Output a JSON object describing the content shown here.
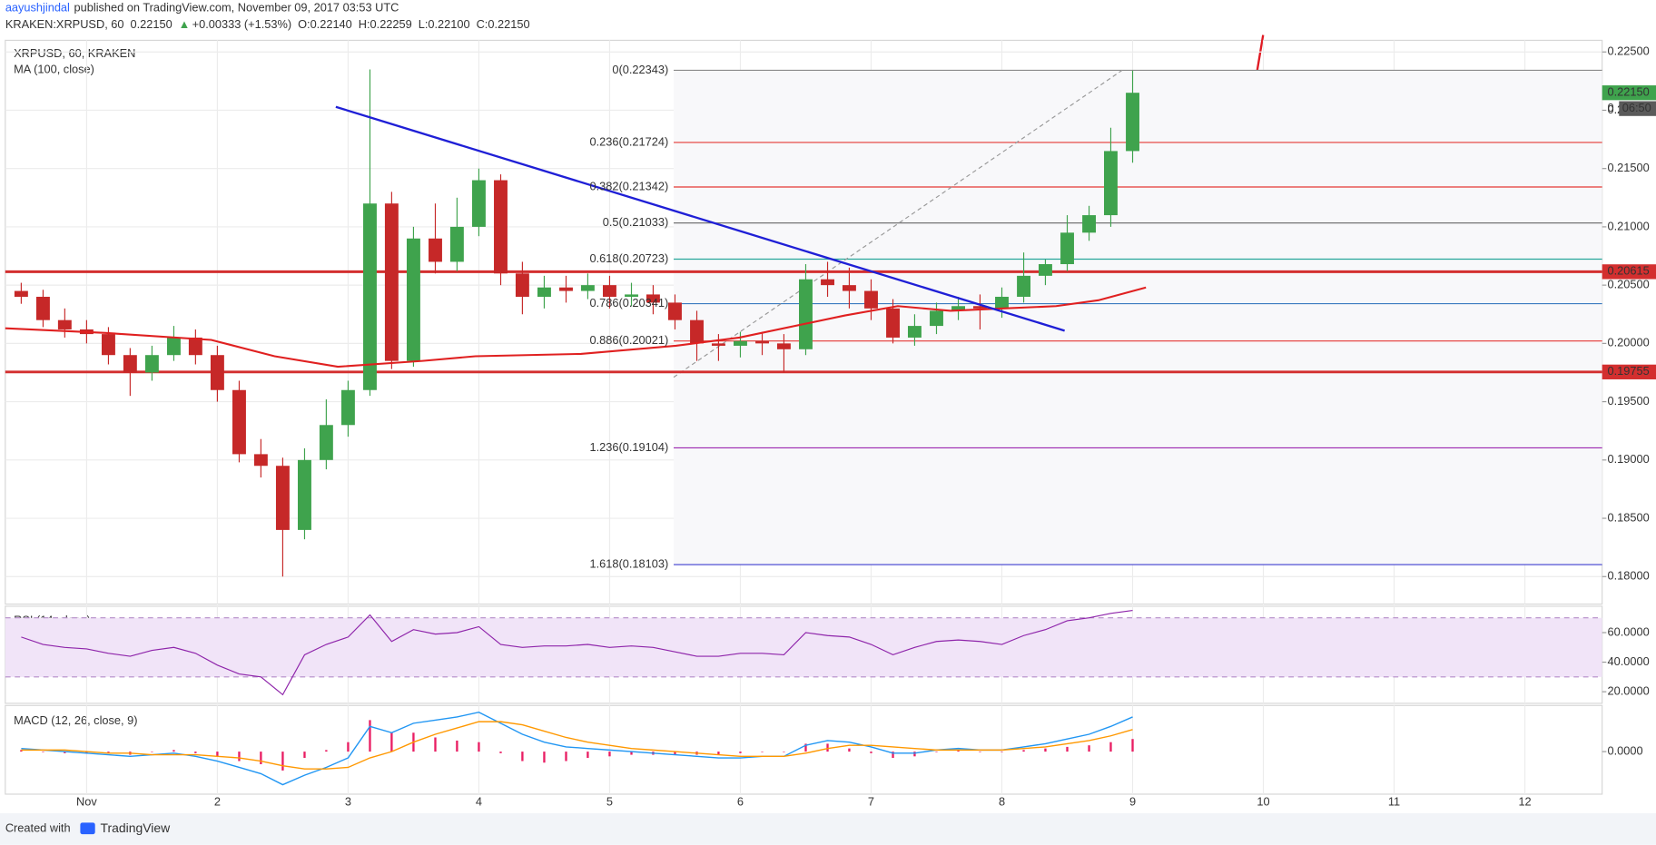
{
  "header": {
    "author": "aayushjindal",
    "published": "published on TradingView.com, November 09, 2017 03:53 UTC",
    "symbol": "KRAKEN:XRPUSD, 60",
    "last": "0.22150",
    "change": "+0.00333 (+1.53%)",
    "open": "O:0.22140",
    "high": "H:0.22259",
    "low": "L:0.22100",
    "close": "C:0.22150"
  },
  "footer": {
    "created": "Created with",
    "brand": "TradingView"
  },
  "chart_data": [
    {
      "type": "candlestick",
      "title": "XRPUSD, 60, KRAKEN",
      "up_color": "#3fa34d",
      "down_color": "#c62828",
      "x": [
        0.5,
        0.667,
        0.833,
        1,
        1.167,
        1.333,
        1.5,
        1.667,
        1.833,
        2,
        2.167,
        2.333,
        2.5,
        2.667,
        2.833,
        3,
        3.167,
        3.333,
        3.5,
        3.667,
        3.833,
        4,
        4.167,
        4.333,
        4.5,
        4.667,
        4.833,
        5,
        5.167,
        5.333,
        5.5,
        5.667,
        5.833,
        6,
        6.167,
        6.333,
        6.5,
        6.667,
        6.833,
        7,
        7.167,
        7.333,
        7.5,
        7.667,
        7.833,
        8,
        8.167,
        8.333,
        8.5,
        8.667,
        8.833,
        9
      ],
      "open": [
        0.2045,
        0.204,
        0.202,
        0.2012,
        0.2008,
        0.199,
        0.1975,
        0.199,
        0.2005,
        0.199,
        0.196,
        0.1905,
        0.1895,
        0.184,
        0.19,
        0.193,
        0.196,
        0.212,
        0.1985,
        0.209,
        0.207,
        0.21,
        0.214,
        0.206,
        0.204,
        0.2048,
        0.2045,
        0.205,
        0.204,
        0.2042,
        0.2035,
        0.202,
        0.2,
        0.1998,
        0.2002,
        0.2,
        0.1995,
        0.2055,
        0.205,
        0.2045,
        0.203,
        0.2005,
        0.2015,
        0.2028,
        0.2032,
        0.203,
        0.204,
        0.2058,
        0.2068,
        0.2095,
        0.211,
        0.2165
      ],
      "high": [
        0.2052,
        0.2046,
        0.203,
        0.202,
        0.2014,
        0.1996,
        0.1998,
        0.2015,
        0.2012,
        0.1998,
        0.1968,
        0.1918,
        0.1902,
        0.191,
        0.1952,
        0.1968,
        0.2235,
        0.213,
        0.21,
        0.212,
        0.2125,
        0.215,
        0.2145,
        0.207,
        0.2058,
        0.2058,
        0.206,
        0.2058,
        0.2052,
        0.205,
        0.2042,
        0.2028,
        0.2008,
        0.201,
        0.201,
        0.2008,
        0.2068,
        0.207,
        0.2065,
        0.2055,
        0.2038,
        0.2025,
        0.2035,
        0.204,
        0.2042,
        0.2048,
        0.2078,
        0.2072,
        0.211,
        0.2118,
        0.2185,
        0.2234
      ],
      "low": [
        0.2034,
        0.2014,
        0.2005,
        0.2,
        0.1982,
        0.1955,
        0.1968,
        0.1985,
        0.1982,
        0.195,
        0.1898,
        0.1885,
        0.18,
        0.1832,
        0.1892,
        0.192,
        0.1955,
        0.1978,
        0.198,
        0.206,
        0.2062,
        0.2092,
        0.205,
        0.2025,
        0.203,
        0.2035,
        0.2038,
        0.203,
        0.2032,
        0.2025,
        0.2012,
        0.1985,
        0.1985,
        0.1988,
        0.199,
        0.1975,
        0.199,
        0.204,
        0.203,
        0.202,
        0.2,
        0.1998,
        0.2008,
        0.202,
        0.2012,
        0.2022,
        0.2035,
        0.205,
        0.2062,
        0.2088,
        0.21,
        0.2155
      ],
      "close": [
        0.204,
        0.202,
        0.2012,
        0.2008,
        0.199,
        0.1975,
        0.199,
        0.2005,
        0.199,
        0.196,
        0.1905,
        0.1895,
        0.184,
        0.19,
        0.193,
        0.196,
        0.212,
        0.1985,
        0.209,
        0.207,
        0.21,
        0.214,
        0.206,
        0.204,
        0.2048,
        0.2045,
        0.205,
        0.204,
        0.2042,
        0.2035,
        0.202,
        0.2,
        0.1998,
        0.2002,
        0.2,
        0.1995,
        0.2055,
        0.205,
        0.2045,
        0.203,
        0.2005,
        0.2015,
        0.2028,
        0.2032,
        0.203,
        0.204,
        0.2058,
        0.2068,
        0.2095,
        0.211,
        0.2165,
        0.2215
      ],
      "ma": {
        "name": "MA (100, close)",
        "color": "#e02020",
        "x": [
          0.378,
          1.145,
          1.953,
          2.438,
          2.922,
          3.569,
          3.973,
          4.78,
          5.507,
          5.992,
          6.8,
          7.204,
          7.607,
          8.011,
          8.415,
          8.738,
          9.102
        ],
        "values": [
          0.2013,
          0.2009,
          0.2003,
          0.1989,
          0.198,
          0.1985,
          0.1989,
          0.1991,
          0.1998,
          0.2005,
          0.2024,
          0.2032,
          0.2028,
          0.203,
          0.2032,
          0.2037,
          0.2048
        ]
      },
      "trendline": {
        "color": "#1f1fd6",
        "x": [
          2.906,
          8.48
        ],
        "values": [
          0.22029,
          0.20109
        ]
      },
      "fib": {
        "anchors": {
          "x": [
            5.49,
            8.92
          ],
          "values": [
            0.1971,
            0.22343
          ]
        },
        "zone_color": "#f8f8fa",
        "levels": [
          {
            "value": 0.22343,
            "label": "0(0.22343)",
            "color": "#8a8a8a"
          },
          {
            "value": 0.21724,
            "label": "0.236(0.21724)",
            "color": "#e53935"
          },
          {
            "value": 0.21342,
            "label": "0.382(0.21342)",
            "color": "#e53935"
          },
          {
            "value": 0.21033,
            "label": "0.5(0.21033)",
            "color": "#666666"
          },
          {
            "value": 0.20723,
            "label": "0.618(0.20723)",
            "color": "#26a69a"
          },
          {
            "value": 0.20341,
            "label": "0.786(0.20341)",
            "color": "#3d7cc0"
          },
          {
            "value": 0.20021,
            "label": "0.886(0.20021)",
            "color": "#e53935"
          },
          {
            "value": 0.19104,
            "label": "1.236(0.19104)",
            "color": "#9c27b0"
          },
          {
            "value": 0.18103,
            "label": "1.618(0.18103)",
            "color": "#3f3fcf"
          }
        ]
      },
      "hlines": [
        0.20615,
        0.19755
      ],
      "hline_color": "#d32f2f",
      "last_price": {
        "value": 0.2215,
        "label": "0.22150"
      },
      "last_color": "#3fa34d",
      "axis_note": "0",
      "countdown": "06:50",
      "xlim": [
        0.378,
        12.591
      ],
      "xticks": [
        {
          "value": 1,
          "label": "Nov"
        },
        2,
        3,
        4,
        5,
        6,
        7,
        8,
        9,
        10,
        11,
        12
      ],
      "ylim": [
        0.17764,
        0.226
      ],
      "yticks": [
        {
          "value": 0.18,
          "label": "0.18000"
        },
        {
          "value": 0.185,
          "label": "0.18500"
        },
        {
          "value": 0.19,
          "label": "0.19000"
        },
        {
          "value": 0.195,
          "label": "0.19500"
        },
        {
          "value": 0.2,
          "label": "0.20000"
        },
        {
          "value": 0.205,
          "label": "0.20500"
        },
        {
          "value": 0.21,
          "label": "0.21000"
        },
        {
          "value": 0.215,
          "label": "0.21500"
        },
        {
          "value": 0.22,
          "label": "0.22000"
        },
        {
          "value": 0.225,
          "label": "0.22500"
        }
      ],
      "grid": true
    },
    {
      "type": "line",
      "title": "RSI (14, close)",
      "color": "#8e24aa",
      "band": [
        30,
        70
      ],
      "band_color": "#f1e4f8",
      "x": [
        0.5,
        0.667,
        0.833,
        1,
        1.167,
        1.333,
        1.5,
        1.667,
        1.833,
        2,
        2.167,
        2.333,
        2.5,
        2.667,
        2.833,
        3,
        3.167,
        3.333,
        3.5,
        3.667,
        3.833,
        4,
        4.167,
        4.333,
        4.5,
        4.667,
        4.833,
        5,
        5.167,
        5.333,
        5.5,
        5.667,
        5.833,
        6,
        6.167,
        6.333,
        6.5,
        6.667,
        6.833,
        7,
        7.167,
        7.333,
        7.5,
        7.667,
        7.833,
        8,
        8.167,
        8.333,
        8.5,
        8.667,
        8.833,
        9
      ],
      "values": [
        57,
        52,
        50,
        49,
        46,
        44,
        48,
        50,
        46,
        38,
        32,
        30,
        18,
        45,
        52,
        57,
        72,
        54,
        62,
        59,
        60,
        64,
        52,
        50,
        51,
        51,
        52,
        50,
        51,
        50,
        47,
        44,
        44,
        46,
        46,
        45,
        60,
        58,
        57,
        52,
        45,
        50,
        54,
        55,
        54,
        52,
        58,
        62,
        68,
        70,
        73,
        75
      ],
      "ylim": [
        12.14,
        77.86
      ],
      "yticks": [
        {
          "value": 20,
          "label": "20.0000"
        },
        {
          "value": 40,
          "label": "40.0000"
        },
        {
          "value": 60,
          "label": "60.0000"
        }
      ]
    },
    {
      "type": "macd",
      "title": "MACD (12, 26, close, 9)",
      "x": [
        0.5,
        0.667,
        0.833,
        1,
        1.167,
        1.333,
        1.5,
        1.667,
        1.833,
        2,
        2.167,
        2.333,
        2.5,
        2.667,
        2.833,
        3,
        3.167,
        3.333,
        3.5,
        3.667,
        3.833,
        4,
        4.167,
        4.333,
        4.5,
        4.667,
        4.833,
        5,
        5.167,
        5.333,
        5.5,
        5.667,
        5.833,
        6,
        6.167,
        6.333,
        6.5,
        6.667,
        6.833,
        7,
        7.167,
        7.333,
        7.5,
        7.667,
        7.833,
        8,
        8.167,
        8.333,
        8.5,
        8.667,
        8.833,
        9
      ],
      "macd": {
        "color": "#2196f3",
        "values": [
          0.0002,
          0.0001,
          0,
          -0.0001,
          -0.0002,
          -0.0003,
          -0.0002,
          -0.0001,
          -0.0003,
          -0.0006,
          -0.001,
          -0.0014,
          -0.0021,
          -0.0015,
          -0.001,
          -0.0004,
          0.0016,
          0.0012,
          0.0018,
          0.002,
          0.0022,
          0.0025,
          0.0018,
          0.0011,
          0.0006,
          0.0003,
          0.0002,
          0.0001,
          0,
          -0.0001,
          -0.0002,
          -0.0003,
          -0.0004,
          -0.0004,
          -0.0003,
          -0.0003,
          0.0004,
          0.0007,
          0.0006,
          0.0003,
          -0.0001,
          -0.0001,
          0.0001,
          0.0002,
          0.0001,
          0.0001,
          0.0003,
          0.0005,
          0.0008,
          0.0011,
          0.0016,
          0.0022
        ]
      },
      "signal": {
        "color": "#ff9800",
        "values": [
          0.0001,
          0.0001,
          0.0001,
          0,
          -0.0001,
          -0.0001,
          -0.0002,
          -0.0002,
          -0.0002,
          -0.0003,
          -0.0004,
          -0.0006,
          -0.0009,
          -0.0011,
          -0.0011,
          -0.001,
          -0.0004,
          0,
          0.0006,
          0.0011,
          0.0015,
          0.0019,
          0.0019,
          0.0017,
          0.0013,
          0.0009,
          0.0006,
          0.0004,
          0.0002,
          0.0001,
          0,
          -0.0001,
          -0.0002,
          -0.0003,
          -0.0003,
          -0.0003,
          -0.0001,
          0.0002,
          0.0004,
          0.0004,
          0.0003,
          0.0002,
          0.0001,
          0.0001,
          0.0001,
          0.0001,
          0.0002,
          0.0003,
          0.0005,
          0.0007,
          0.001,
          0.0014
        ]
      },
      "histogram": {
        "color": "#e91e63",
        "values": [
          0.0001,
          0,
          -0.0001,
          -0.0001,
          -0.0001,
          -0.0002,
          0,
          0.0001,
          -0.0001,
          -0.0003,
          -0.0006,
          -0.0008,
          -0.0012,
          -0.0004,
          0.0001,
          0.0006,
          0.002,
          0.0012,
          0.0012,
          0.0009,
          0.0007,
          0.0006,
          -0.0001,
          -0.0006,
          -0.0007,
          -0.0006,
          -0.0004,
          -0.0003,
          -0.0002,
          -0.0002,
          -0.0002,
          -0.0002,
          -0.0002,
          -0.0001,
          0,
          0,
          0.0005,
          0.0005,
          0.0002,
          -0.0001,
          -0.0004,
          -0.0003,
          0,
          0.0001,
          0,
          0,
          0.0001,
          0.0002,
          0.0003,
          0.0004,
          0.0006,
          0.0008
        ]
      },
      "ylim": [
        -0.0027,
        0.00293
      ],
      "yticks": [
        {
          "value": 0,
          "label": "0.0000"
        }
      ]
    }
  ]
}
